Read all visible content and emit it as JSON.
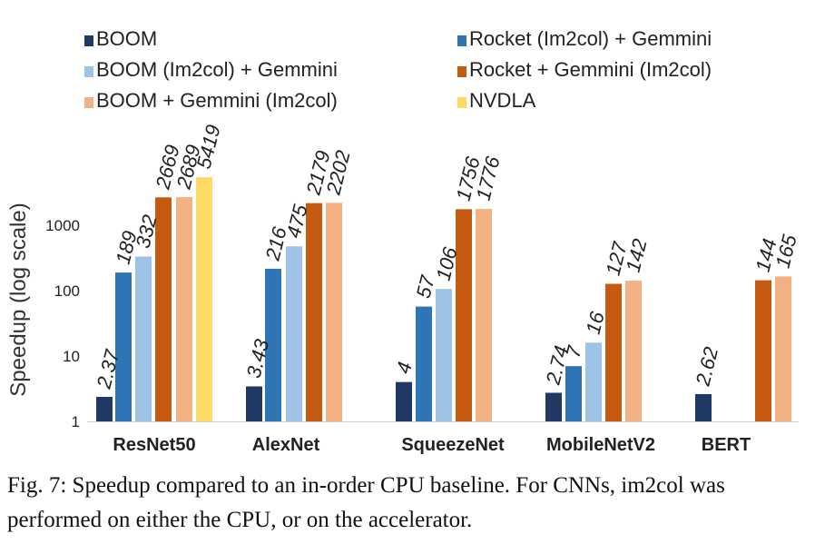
{
  "chart_data": {
    "type": "bar",
    "yscale": "log",
    "ylabel": "Speedup (log scale)",
    "ylim": [
      1,
      6000
    ],
    "yticks": [
      1,
      10,
      100,
      1000
    ],
    "ytick_labels": [
      "1",
      "10",
      "100",
      "1000"
    ],
    "categories": [
      "ResNet50",
      "AlexNet",
      "SqueezeNet",
      "MobileNetV2",
      "BERT"
    ],
    "series": [
      {
        "name": "BOOM",
        "color": "#1f3864",
        "values": [
          2.37,
          3.43,
          4,
          2.74,
          2.62
        ],
        "labels": [
          "2.37",
          "3.43",
          "4",
          "2.74",
          "2.62"
        ]
      },
      {
        "name": "Rocket (Im2col) + Gemmini",
        "color": "#2e75b6",
        "values": [
          189,
          216,
          57,
          7,
          null
        ],
        "labels": [
          "189",
          "216",
          "57",
          "7",
          null
        ]
      },
      {
        "name": "BOOM (Im2col) + Gemmini",
        "color": "#9dc3e6",
        "values": [
          332,
          475,
          106,
          16,
          null
        ],
        "labels": [
          "332",
          "475",
          "106",
          "16",
          null
        ]
      },
      {
        "name": "Rocket + Gemmini (Im2col)",
        "color": "#c55a11",
        "values": [
          2669,
          2179,
          1756,
          127,
          144
        ],
        "labels": [
          "2669",
          "2179",
          "1756",
          "127",
          "144"
        ]
      },
      {
        "name": "BOOM + Gemmini (Im2col)",
        "color": "#f4b183",
        "values": [
          2689,
          2202,
          1776,
          142,
          165
        ],
        "labels": [
          "2689",
          "2202",
          "1776",
          "142",
          "165"
        ]
      },
      {
        "name": "NVDLA",
        "color": "#ffd966",
        "values": [
          5419,
          null,
          null,
          null,
          null
        ],
        "labels": [
          "5419",
          null,
          null,
          null,
          null
        ]
      }
    ],
    "legend_position": "top"
  },
  "caption": "Fig. 7: Speedup compared to an in-order CPU baseline. For CNNs, im2col was performed on either the CPU, or on the accelerator."
}
